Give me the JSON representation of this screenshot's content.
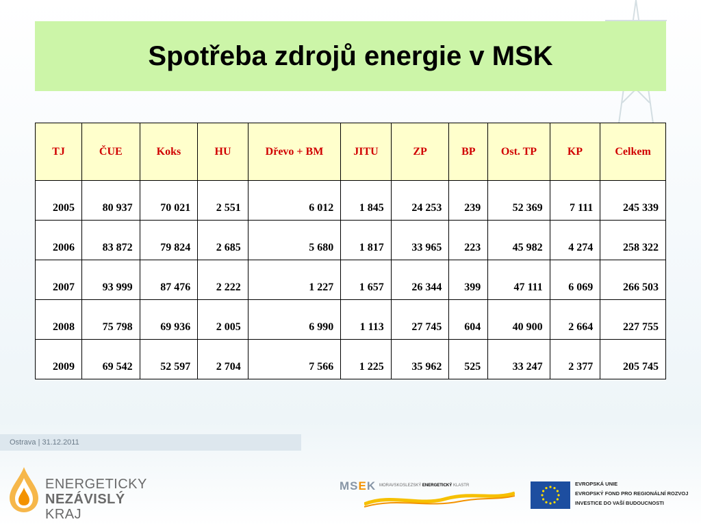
{
  "slide": {
    "title": "Spotřeba zdrojů energie v MSK"
  },
  "table": {
    "headers": [
      "TJ",
      "ČUE",
      "Koks",
      "HU",
      "Dřevo + BM",
      "JITU",
      "ZP",
      "BP",
      "Ost. TP",
      "KP",
      "Celkem"
    ],
    "rows": [
      [
        "2005",
        "80 937",
        "70 021",
        "2 551",
        "6 012",
        "1 845",
        "24 253",
        "239",
        "52 369",
        "7 111",
        "245 339"
      ],
      [
        "2006",
        "83 872",
        "79 824",
        "2 685",
        "5 680",
        "1 817",
        "33 965",
        "223",
        "45 982",
        "4 274",
        "258 322"
      ],
      [
        "2007",
        "93 999",
        "87 476",
        "2 222",
        "1 227",
        "1 657",
        "26 344",
        "399",
        "47 111",
        "6 069",
        "266 503"
      ],
      [
        "2008",
        "75 798",
        "69 936",
        "2 005",
        "6 990",
        "1 113",
        "27 745",
        "604",
        "40 900",
        "2 664",
        "227 755"
      ],
      [
        "2009",
        "69 542",
        "52 597",
        "2 704",
        "7 566",
        "1 225",
        "35 962",
        "525",
        "33 247",
        "2 377",
        "205 745"
      ]
    ]
  },
  "footer": {
    "location_date": "Ostrava | 31.12.2011"
  },
  "logos": {
    "enk_line1": "ENERGETICKY",
    "enk_line2_bold": "NEZÁVISLÝ",
    "enk_line2_rest": "KRAJ",
    "msek_prefix": "MS",
    "msek_accent": "E",
    "msek_suffix": "K",
    "msek_sub_plain": "MORAVSKOSLEZSKÝ",
    "msek_sub_bold": "ENERGETICKÝ",
    "msek_sub_end": "KLASTR",
    "eu_line1": "EVROPSKÁ UNIE",
    "eu_line2": "EVROPSKÝ FOND PRO REGIONÁLNÍ ROZVOJ",
    "eu_line3": "INVESTICE DO VAŠÍ BUDOUCNOSTI"
  },
  "colors": {
    "title_bg": "#ccf5a8",
    "header_bg": "#ffffcc",
    "header_text": "#d00000",
    "eu_blue": "#1d4ea0",
    "eu_star": "#ffdd00",
    "flame": "#f39200"
  }
}
